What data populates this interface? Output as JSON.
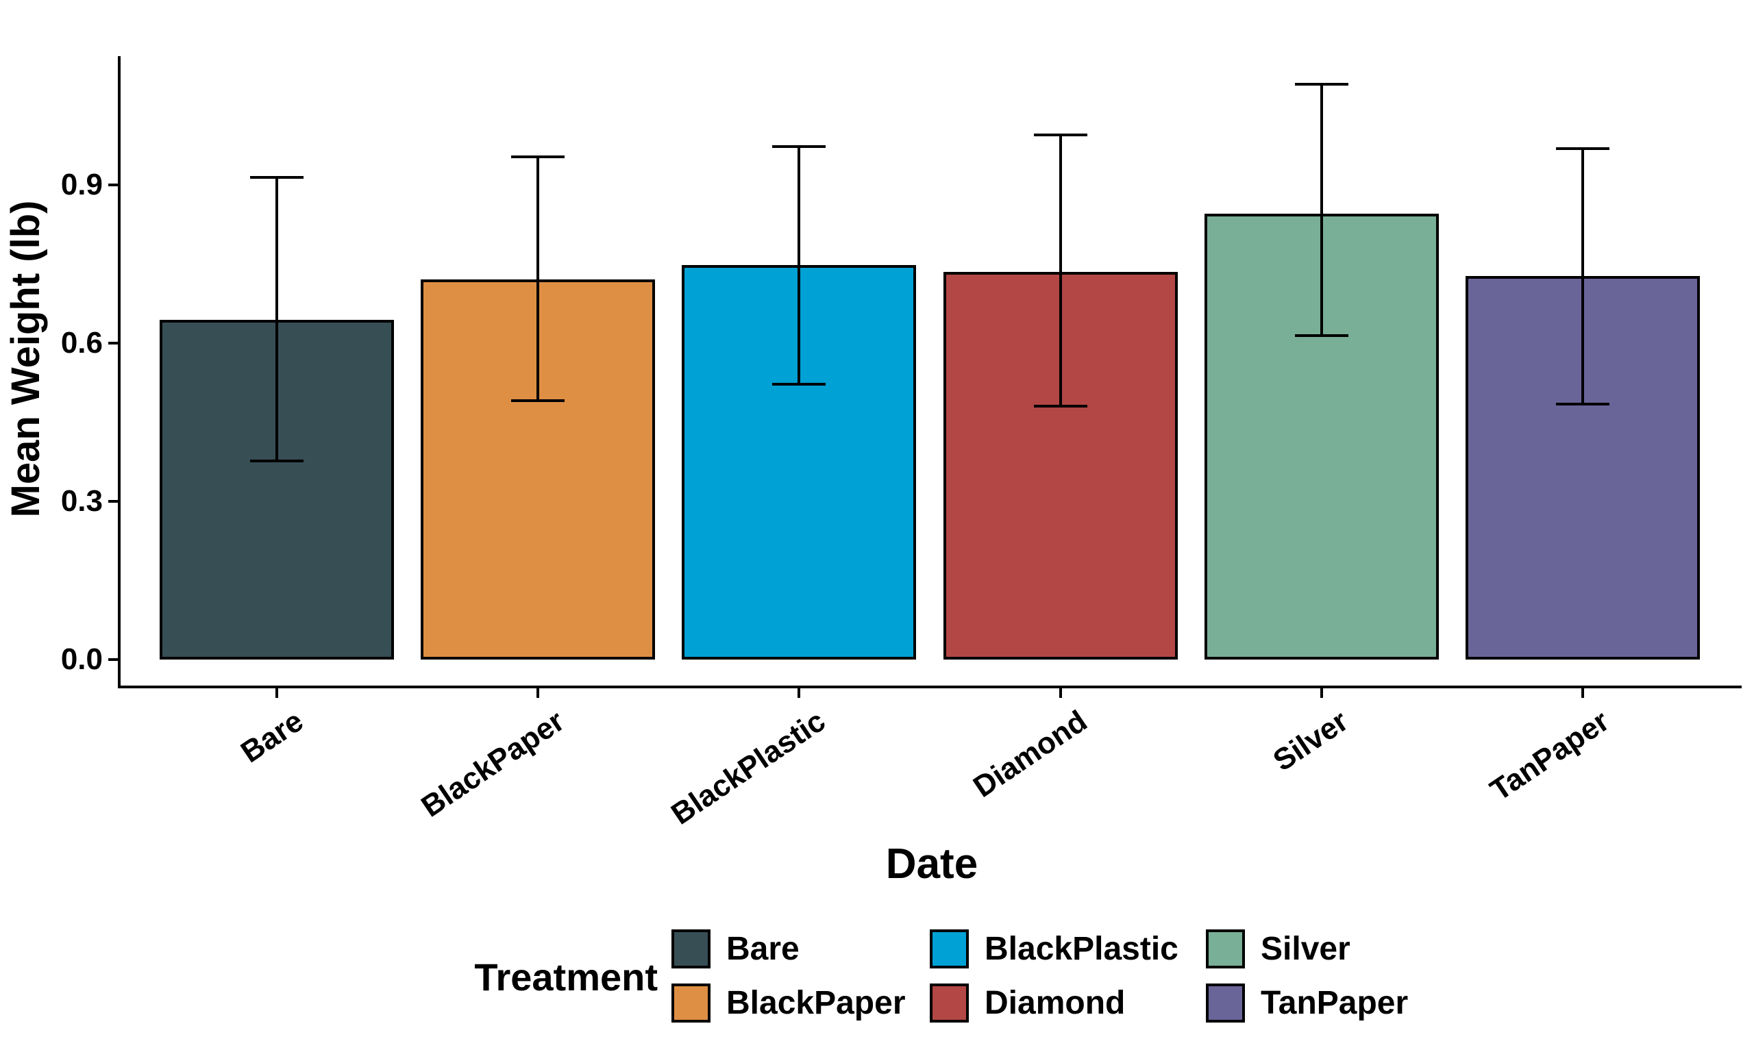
{
  "figure": {
    "background_color": "#FFFFFF",
    "text_color": "#000000"
  },
  "chart_data": {
    "type": "bar",
    "title": "",
    "xlabel": "Date",
    "ylabel": "Mean Weight (lb)",
    "categories": [
      "Bare",
      "BlackPaper",
      "BlackPlastic",
      "Diamond",
      "Silver",
      "TanPaper"
    ],
    "values": [
      0.644,
      0.721,
      0.748,
      0.735,
      0.845,
      0.727
    ],
    "error_low": [
      0.377,
      0.491,
      0.522,
      0.481,
      0.614,
      0.484
    ],
    "error_high": [
      0.914,
      0.953,
      0.973,
      0.995,
      1.091,
      0.969
    ],
    "bar_colors": [
      "#374E55",
      "#DF8F44",
      "#00A1D5",
      "#B24745",
      "#79AF97",
      "#6A6599"
    ],
    "bar_border_color": "#000000",
    "error_bar_color": "#000000",
    "y_tick_labels": [
      "0.0",
      "0.3",
      "0.6",
      "0.9"
    ],
    "y_tick_values": [
      0.0,
      0.3,
      0.6,
      0.9
    ],
    "ylim": [
      0,
      1.15
    ],
    "grid": "off",
    "x_label_angle_deg": -34,
    "legend": {
      "title": "Treatment",
      "position": "bottom",
      "columns": 3,
      "entries": [
        {
          "label": "Bare",
          "color": "#374E55"
        },
        {
          "label": "BlackPaper",
          "color": "#DF8F44"
        },
        {
          "label": "BlackPlastic",
          "color": "#00A1D5"
        },
        {
          "label": "Diamond",
          "color": "#B24745"
        },
        {
          "label": "Silver",
          "color": "#79AF97"
        },
        {
          "label": "TanPaper",
          "color": "#6A6599"
        }
      ]
    }
  }
}
